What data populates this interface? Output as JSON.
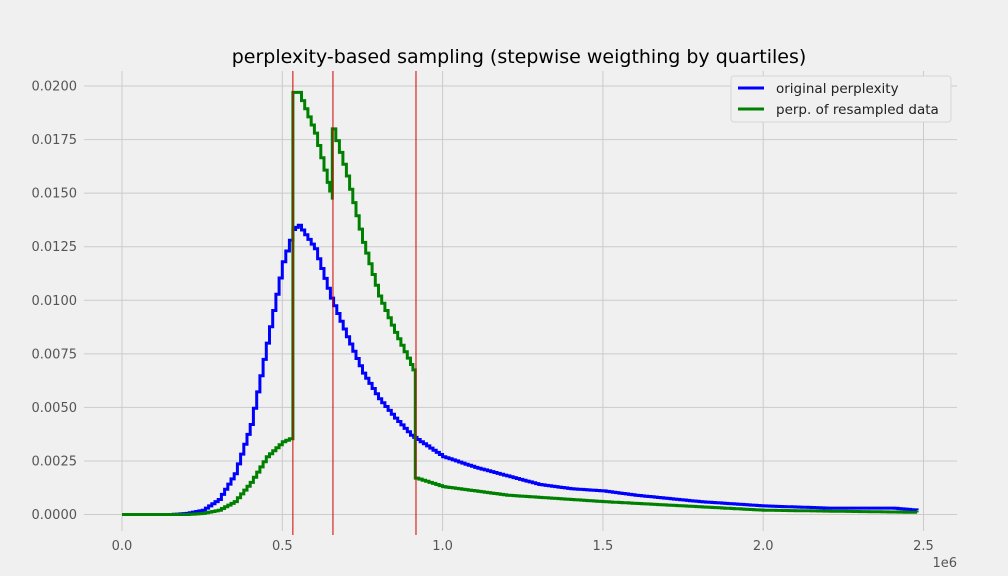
{
  "chart_data": {
    "type": "line",
    "subtype": "step-histogram",
    "title": "perplexity-based sampling (stepwise weigthing by quartiles)",
    "xlabel": "",
    "ylabel": "",
    "x_offset_label": "1e6",
    "xlim": [
      -0.12,
      2.6
    ],
    "ylim": [
      -0.0007,
      0.0207
    ],
    "x_ticks": [
      0.0,
      0.5,
      1.0,
      1.5,
      2.0,
      2.5
    ],
    "x_tick_labels": [
      "0.0",
      "0.5",
      "1.0",
      "1.5",
      "2.0",
      "2.5"
    ],
    "y_ticks": [
      0.0,
      0.0025,
      0.005,
      0.0075,
      0.01,
      0.0125,
      0.015,
      0.0175,
      0.02
    ],
    "y_tick_labels": [
      "0.0000",
      "0.0025",
      "0.0050",
      "0.0075",
      "0.0100",
      "0.0125",
      "0.0150",
      "0.0175",
      "0.0200"
    ],
    "grid": true,
    "legend_position": "upper right",
    "quartile_lines": {
      "color": "#d00000",
      "x": [
        0.533,
        0.658,
        0.917
      ]
    },
    "series": [
      {
        "name": "original perplexity",
        "color": "#0000ff",
        "x": [
          0.0,
          0.15,
          0.2,
          0.25,
          0.3,
          0.35,
          0.4,
          0.45,
          0.5,
          0.533,
          0.55,
          0.6,
          0.65,
          0.7,
          0.75,
          0.8,
          0.85,
          0.9,
          0.95,
          1.0,
          1.1,
          1.2,
          1.3,
          1.4,
          1.5,
          1.6,
          1.8,
          2.0,
          2.2,
          2.4,
          2.48
        ],
        "values": [
          0.0,
          0.0,
          5e-05,
          0.0002,
          0.0007,
          0.0019,
          0.0042,
          0.008,
          0.0118,
          0.0133,
          0.0135,
          0.0124,
          0.0101,
          0.0083,
          0.0066,
          0.0054,
          0.0045,
          0.0037,
          0.0032,
          0.0027,
          0.0022,
          0.0018,
          0.0014,
          0.0012,
          0.0011,
          0.0009,
          0.0006,
          0.0004,
          0.0003,
          0.0003,
          0.0002
        ]
      },
      {
        "name": "perp. of resampled data",
        "color": "#008000",
        "x": [
          0.0,
          0.2,
          0.25,
          0.3,
          0.35,
          0.4,
          0.45,
          0.5,
          0.533,
          0.533,
          0.55,
          0.6,
          0.64,
          0.656,
          0.656,
          0.7,
          0.75,
          0.8,
          0.85,
          0.9,
          0.915,
          0.915,
          1.0,
          1.2,
          1.5,
          2.0,
          2.48
        ],
        "values": [
          0.0,
          0.0,
          5e-05,
          0.0002,
          0.0006,
          0.0015,
          0.0027,
          0.0034,
          0.0036,
          0.0197,
          0.0197,
          0.0178,
          0.0155,
          0.0147,
          0.018,
          0.0158,
          0.0127,
          0.0102,
          0.0085,
          0.007,
          0.0065,
          0.0017,
          0.0013,
          0.0009,
          0.0006,
          0.0002,
          0.0001
        ]
      }
    ]
  }
}
